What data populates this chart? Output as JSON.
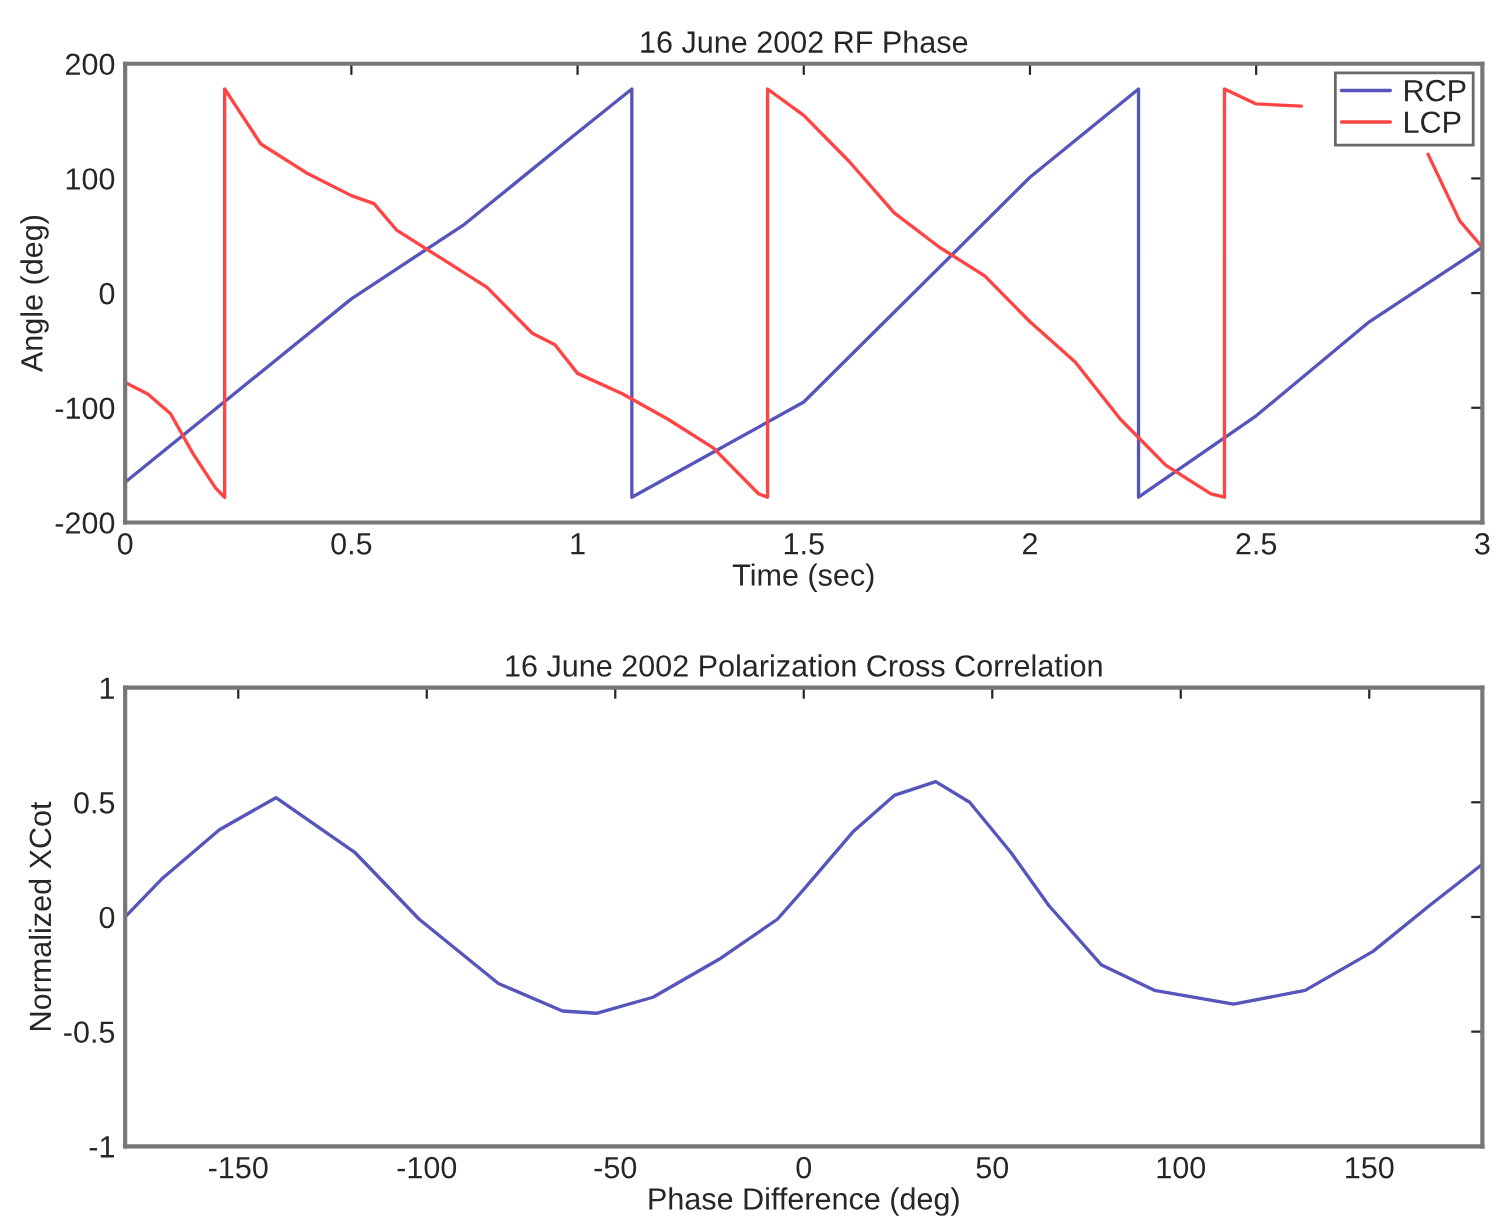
{
  "chart_data": [
    {
      "type": "line",
      "title": "16 June 2002 RF Phase",
      "xlabel": "Time (sec)",
      "ylabel": "Angle (deg)",
      "xlim": [
        0,
        3
      ],
      "ylim": [
        -200,
        200
      ],
      "xticks": [
        0,
        0.5,
        1,
        1.5,
        2,
        2.5,
        3
      ],
      "yticks": [
        -200,
        -100,
        0,
        100,
        200
      ],
      "grid": false,
      "legend": "top right",
      "line_style": "solid",
      "series": [
        {
          "name": "RCP",
          "color": "#5555bb",
          "x": [
            0,
            0.5,
            0.75,
            1.0,
            1.12,
            1.12,
            1.5,
            2.0,
            2.24,
            2.24,
            2.5,
            2.75,
            3.0
          ],
          "values": [
            -165,
            -5,
            60,
            140,
            178,
            -178,
            -95,
            101,
            178,
            -178,
            -107,
            -25,
            40
          ]
        },
        {
          "name": "LCP",
          "color": "#ff4444",
          "x": [
            0,
            0.05,
            0.1,
            0.15,
            0.2,
            0.22,
            0.22,
            0.25,
            0.3,
            0.4,
            0.5,
            0.55,
            0.6,
            0.7,
            0.8,
            0.9,
            0.95,
            1.0,
            1.1,
            1.2,
            1.3,
            1.4,
            1.42,
            1.42,
            1.5,
            1.6,
            1.7,
            1.8,
            1.9,
            2.0,
            2.1,
            2.2,
            2.3,
            2.4,
            2.43,
            2.43,
            2.5,
            2.6,
            2.75,
            2.88,
            2.95,
            3.0
          ],
          "values": [
            -78,
            -88,
            -105,
            -140,
            -170,
            -178,
            178,
            160,
            130,
            105,
            85,
            78,
            55,
            30,
            5,
            -35,
            -45,
            -70,
            -88,
            -110,
            -135,
            -175,
            -178,
            178,
            155,
            115,
            70,
            40,
            15,
            -25,
            -60,
            -110,
            -150,
            -175,
            -178,
            178,
            165,
            163,
            null,
            121,
            63,
            40
          ]
        }
      ]
    },
    {
      "type": "line",
      "title": "16 June 2002 Polarization Cross Correlation",
      "xlabel": "Phase Difference (deg)",
      "ylabel": "Normalized XCot",
      "xlim": [
        -180,
        180
      ],
      "ylim": [
        -1,
        1
      ],
      "xticks": [
        -150,
        -100,
        -50,
        0,
        50,
        100,
        150
      ],
      "yticks": [
        -1,
        -0.5,
        0,
        0.5,
        1
      ],
      "grid": false,
      "legend": false,
      "line_style": "solid",
      "series": [
        {
          "color": "#5555bb",
          "x": [
            -180,
            -170,
            -155,
            -140,
            -119,
            -102,
            -81,
            -64,
            -55,
            -40,
            -22,
            -7,
            0,
            13,
            24,
            35,
            44,
            55,
            65,
            79,
            93,
            114,
            133,
            151,
            166,
            180
          ],
          "values": [
            0,
            0.17,
            0.38,
            0.52,
            0.28,
            -0.01,
            -0.29,
            -0.41,
            -0.42,
            -0.35,
            -0.18,
            -0.01,
            0.12,
            0.37,
            0.53,
            0.59,
            0.5,
            0.28,
            0.05,
            -0.21,
            -0.32,
            -0.38,
            -0.32,
            -0.15,
            0.05,
            0.23
          ]
        }
      ]
    }
  ]
}
